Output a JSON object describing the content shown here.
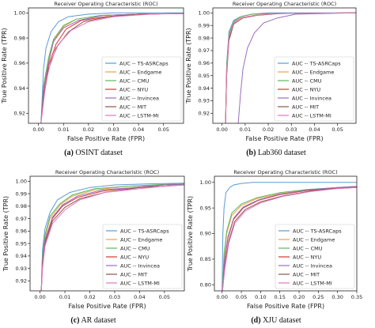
{
  "figure": {
    "panels": [
      {
        "caption_letter": "(a)",
        "caption_text": "OSINT dataset"
      },
      {
        "caption_letter": "(b)",
        "caption_text": "Lab360 dataset"
      },
      {
        "caption_letter": "(c)",
        "caption_text": "AR dataset"
      },
      {
        "caption_letter": "(d)",
        "caption_text": "XJU dataset"
      }
    ]
  },
  "colors": {
    "TS-ASRCaps": "#5a9bd5",
    "Endgame": "#f0a04b",
    "CMU": "#5cb85c",
    "NYU": "#d9342b",
    "Invincea": "#9b6cc0",
    "MIT": "#8c564b",
    "LSTM-MI": "#e377c2"
  },
  "chart_data": [
    {
      "type": "line",
      "title": "Receiver Operating Characteristic (ROC)",
      "xlabel": "False Positive Rate  (FPR)",
      "ylabel": "True Positive Rate  (TPR)",
      "xlim": [
        -0.004,
        0.058
      ],
      "ylim": [
        0.912,
        1.004
      ],
      "xticks": [
        0.0,
        0.01,
        0.02,
        0.03,
        0.04,
        0.05
      ],
      "xtick_labels": [
        "0.00",
        "0.01",
        "0.02",
        "0.03",
        "0.04",
        "0.05"
      ],
      "yticks": [
        0.92,
        0.94,
        0.96,
        0.98,
        1.0
      ],
      "ytick_labels": [
        "0.92",
        "0.94",
        "0.96",
        "0.98",
        "1.00"
      ],
      "legend": "bottom-right",
      "series": [
        {
          "name": "AUC -- TS-ASRCaps",
          "x": [
            0.001,
            0.002,
            0.003,
            0.005,
            0.008,
            0.012,
            0.02,
            0.03,
            0.058
          ],
          "y": [
            0.912,
            0.955,
            0.972,
            0.985,
            0.993,
            0.997,
            0.999,
            1.0,
            1.0
          ]
        },
        {
          "name": "AUC -- Endgame",
          "x": [
            0.001,
            0.002,
            0.004,
            0.006,
            0.01,
            0.015,
            0.025,
            0.04,
            0.058
          ],
          "y": [
            0.912,
            0.94,
            0.962,
            0.978,
            0.989,
            0.995,
            0.998,
            0.999,
            0.9995
          ]
        },
        {
          "name": "AUC -- CMU",
          "x": [
            0.001,
            0.002,
            0.004,
            0.006,
            0.01,
            0.015,
            0.025,
            0.04,
            0.058
          ],
          "y": [
            0.912,
            0.942,
            0.964,
            0.979,
            0.99,
            0.995,
            0.998,
            0.999,
            0.9995
          ]
        },
        {
          "name": "AUC -- NYU",
          "x": [
            0.001,
            0.002,
            0.004,
            0.007,
            0.011,
            0.017,
            0.027,
            0.04,
            0.058
          ],
          "y": [
            0.912,
            0.935,
            0.958,
            0.975,
            0.987,
            0.994,
            0.997,
            0.999,
            0.9995
          ]
        },
        {
          "name": "AUC -- Invincea",
          "x": [
            0.001,
            0.002,
            0.004,
            0.006,
            0.01,
            0.016,
            0.026,
            0.04,
            0.058
          ],
          "y": [
            0.912,
            0.938,
            0.96,
            0.977,
            0.988,
            0.994,
            0.998,
            0.999,
            0.9995
          ]
        },
        {
          "name": "AUC -- MIT",
          "x": [
            0.001,
            0.002,
            0.004,
            0.007,
            0.012,
            0.018,
            0.028,
            0.04,
            0.058
          ],
          "y": [
            0.912,
            0.932,
            0.955,
            0.972,
            0.985,
            0.993,
            0.997,
            0.999,
            0.9995
          ]
        },
        {
          "name": "AUC -- LSTM-MI",
          "x": [
            0.001,
            0.003,
            0.005,
            0.008,
            0.013,
            0.02,
            0.03,
            0.045,
            0.058
          ],
          "y": [
            0.912,
            0.945,
            0.962,
            0.975,
            0.986,
            0.993,
            0.997,
            0.999,
            0.9995
          ]
        }
      ]
    },
    {
      "type": "line",
      "title": "Receiver Operating Characteristic (ROC)",
      "xlabel": "False Positive Rate  (FPR)",
      "ylabel": "True Positive Rate  (TPR)",
      "xlim": [
        -0.004,
        0.058
      ],
      "ylim": [
        0.912,
        1.004
      ],
      "xticks": [
        0.0,
        0.01,
        0.02,
        0.03,
        0.04,
        0.05
      ],
      "xtick_labels": [
        "0.00",
        "0.01",
        "0.02",
        "0.03",
        "0.04",
        "0.05"
      ],
      "yticks": [
        0.92,
        0.93,
        0.94,
        0.95,
        0.96,
        0.97,
        0.98,
        0.99,
        1.0
      ],
      "ytick_labels": [
        "0.92",
        "0.93",
        "0.94",
        "0.95",
        "0.96",
        "0.97",
        "0.98",
        "0.99",
        "1.00"
      ],
      "legend": "bottom-right",
      "series": [
        {
          "name": "AUC -- TS-ASRCaps",
          "x": [
            0.0015,
            0.002,
            0.003,
            0.005,
            0.008,
            0.013,
            0.02,
            0.058
          ],
          "y": [
            0.912,
            0.96,
            0.985,
            0.994,
            0.997,
            0.999,
            1.0,
            1.0
          ]
        },
        {
          "name": "AUC -- Endgame",
          "x": [
            0.0015,
            0.002,
            0.003,
            0.005,
            0.008,
            0.013,
            0.022,
            0.058
          ],
          "y": [
            0.912,
            0.955,
            0.982,
            0.993,
            0.997,
            0.999,
            0.9995,
            1.0
          ]
        },
        {
          "name": "AUC -- CMU",
          "x": [
            0.0015,
            0.002,
            0.003,
            0.005,
            0.008,
            0.013,
            0.022,
            0.058
          ],
          "y": [
            0.912,
            0.957,
            0.983,
            0.993,
            0.997,
            0.999,
            0.9995,
            1.0
          ]
        },
        {
          "name": "AUC -- NYU",
          "x": [
            0.0015,
            0.002,
            0.003,
            0.005,
            0.008,
            0.014,
            0.024,
            0.058
          ],
          "y": [
            0.912,
            0.952,
            0.98,
            0.992,
            0.996,
            0.998,
            0.9995,
            1.0
          ]
        },
        {
          "name": "AUC -- Invincea",
          "x": [
            0.007,
            0.008,
            0.009,
            0.011,
            0.014,
            0.018,
            0.024,
            0.032,
            0.058
          ],
          "y": [
            0.912,
            0.935,
            0.955,
            0.972,
            0.984,
            0.992,
            0.996,
            0.999,
            1.0
          ]
        },
        {
          "name": "AUC -- MIT",
          "x": [
            0.0015,
            0.002,
            0.003,
            0.005,
            0.009,
            0.015,
            0.025,
            0.058
          ],
          "y": [
            0.912,
            0.95,
            0.978,
            0.991,
            0.996,
            0.998,
            0.9995,
            1.0
          ]
        },
        {
          "name": "AUC -- LSTM-MI",
          "x": [
            0.0015,
            0.002,
            0.003,
            0.005,
            0.008,
            0.014,
            0.023,
            0.058
          ],
          "y": [
            0.912,
            0.953,
            0.981,
            0.992,
            0.996,
            0.998,
            0.9995,
            1.0
          ]
        }
      ]
    },
    {
      "type": "line",
      "title": "Receiver Operating Characteristic (ROC)",
      "xlabel": "False Positive Rate  (FPR)",
      "ylabel": "True Positive Rate  (TPR)",
      "xlim": [
        -0.004,
        0.058
      ],
      "ylim": [
        0.912,
        1.004
      ],
      "xticks": [
        0.0,
        0.01,
        0.02,
        0.03,
        0.04,
        0.05
      ],
      "xtick_labels": [
        "0.00",
        "0.01",
        "0.02",
        "0.03",
        "0.04",
        "0.05"
      ],
      "yticks": [
        0.92,
        0.93,
        0.94,
        0.95,
        0.96,
        0.97,
        0.98,
        0.99,
        1.0
      ],
      "ytick_labels": [
        "0.92",
        "0.93",
        "0.94",
        "0.95",
        "0.96",
        "0.97",
        "0.98",
        "0.99",
        "1.00"
      ],
      "legend": "bottom-right",
      "series": [
        {
          "name": "AUC -- TS-ASRCaps",
          "x": [
            0.0005,
            0.001,
            0.002,
            0.004,
            0.007,
            0.012,
            0.02,
            0.03,
            0.045,
            0.058
          ],
          "y": [
            0.912,
            0.945,
            0.962,
            0.975,
            0.985,
            0.991,
            0.995,
            0.997,
            0.998,
            0.9985
          ]
        },
        {
          "name": "AUC -- Endgame",
          "x": [
            0.0005,
            0.001,
            0.002,
            0.004,
            0.008,
            0.013,
            0.022,
            0.035,
            0.05,
            0.058
          ],
          "y": [
            0.912,
            0.938,
            0.955,
            0.97,
            0.981,
            0.988,
            0.993,
            0.996,
            0.997,
            0.9975
          ]
        },
        {
          "name": "AUC -- CMU",
          "x": [
            0.0005,
            0.001,
            0.002,
            0.004,
            0.008,
            0.013,
            0.022,
            0.035,
            0.05,
            0.058
          ],
          "y": [
            0.912,
            0.94,
            0.957,
            0.972,
            0.982,
            0.989,
            0.994,
            0.996,
            0.9975,
            0.998
          ]
        },
        {
          "name": "AUC -- NYU",
          "x": [
            0.0005,
            0.001,
            0.002,
            0.005,
            0.009,
            0.015,
            0.025,
            0.038,
            0.05,
            0.058
          ],
          "y": [
            0.912,
            0.935,
            0.952,
            0.97,
            0.98,
            0.987,
            0.992,
            0.995,
            0.997,
            0.9975
          ]
        },
        {
          "name": "AUC -- Invincea",
          "x": [
            0.0005,
            0.001,
            0.002,
            0.005,
            0.009,
            0.015,
            0.025,
            0.038,
            0.05,
            0.058
          ],
          "y": [
            0.912,
            0.936,
            0.953,
            0.971,
            0.981,
            0.988,
            0.993,
            0.995,
            0.997,
            0.9975
          ]
        },
        {
          "name": "AUC -- MIT",
          "x": [
            0.0005,
            0.001,
            0.002,
            0.005,
            0.01,
            0.016,
            0.026,
            0.04,
            0.05,
            0.058
          ],
          "y": [
            0.912,
            0.932,
            0.95,
            0.968,
            0.979,
            0.986,
            0.991,
            0.995,
            0.996,
            0.997
          ]
        },
        {
          "name": "AUC -- LSTM-MI",
          "x": [
            0.0005,
            0.001,
            0.002,
            0.005,
            0.01,
            0.016,
            0.026,
            0.04,
            0.05,
            0.058
          ],
          "y": [
            0.912,
            0.93,
            0.948,
            0.966,
            0.977,
            0.985,
            0.991,
            0.994,
            0.996,
            0.997
          ]
        }
      ]
    },
    {
      "type": "line",
      "title": "Receiver Operating Characteristic (ROC)",
      "xlabel": "False Positive Rate  (FPR)",
      "ylabel": "True Positive Rate  (TPR)",
      "xlim": [
        -0.02,
        0.35
      ],
      "ylim": [
        0.788,
        1.012
      ],
      "xticks": [
        0.0,
        0.05,
        0.1,
        0.15,
        0.2,
        0.25,
        0.3,
        0.35
      ],
      "xtick_labels": [
        "0.00",
        "0.05",
        "0.10",
        "0.15",
        "0.20",
        "0.25",
        "0.30",
        "0.35"
      ],
      "yticks": [
        0.8,
        0.85,
        0.9,
        0.95,
        1.0
      ],
      "ytick_labels": [
        "0.80",
        "0.85",
        "0.90",
        "0.95",
        "1.00"
      ],
      "legend": "bottom-right",
      "series": [
        {
          "name": "AUC -- TS-ASRCaps",
          "x": [
            0.0,
            0.002,
            0.005,
            0.01,
            0.02,
            0.03,
            0.05,
            0.08,
            0.35
          ],
          "y": [
            0.788,
            0.9,
            0.95,
            0.98,
            0.99,
            0.995,
            0.998,
            1.0,
            1.0
          ]
        },
        {
          "name": "AUC -- Endgame",
          "x": [
            0.001,
            0.005,
            0.012,
            0.025,
            0.05,
            0.09,
            0.15,
            0.22,
            0.3,
            0.35
          ],
          "y": [
            0.788,
            0.85,
            0.9,
            0.935,
            0.955,
            0.968,
            0.978,
            0.985,
            0.99,
            0.992
          ]
        },
        {
          "name": "AUC -- CMU",
          "x": [
            0.001,
            0.005,
            0.012,
            0.025,
            0.05,
            0.09,
            0.15,
            0.22,
            0.3,
            0.35
          ],
          "y": [
            0.788,
            0.86,
            0.905,
            0.94,
            0.958,
            0.97,
            0.98,
            0.986,
            0.99,
            0.992
          ]
        },
        {
          "name": "AUC -- NYU",
          "x": [
            0.001,
            0.006,
            0.015,
            0.03,
            0.055,
            0.095,
            0.15,
            0.22,
            0.3,
            0.35
          ],
          "y": [
            0.788,
            0.84,
            0.89,
            0.928,
            0.95,
            0.965,
            0.976,
            0.984,
            0.989,
            0.991
          ]
        },
        {
          "name": "AUC -- Invincea",
          "x": [
            0.001,
            0.006,
            0.015,
            0.03,
            0.055,
            0.095,
            0.15,
            0.22,
            0.3,
            0.35
          ],
          "y": [
            0.788,
            0.845,
            0.893,
            0.93,
            0.952,
            0.966,
            0.977,
            0.985,
            0.99,
            0.992
          ]
        },
        {
          "name": "AUC -- MIT",
          "x": [
            0.001,
            0.007,
            0.017,
            0.033,
            0.06,
            0.1,
            0.16,
            0.23,
            0.3,
            0.35
          ],
          "y": [
            0.788,
            0.835,
            0.885,
            0.924,
            0.947,
            0.962,
            0.974,
            0.983,
            0.988,
            0.99
          ]
        },
        {
          "name": "AUC -- LSTM-MI",
          "x": [
            0.001,
            0.007,
            0.017,
            0.033,
            0.06,
            0.1,
            0.16,
            0.23,
            0.3,
            0.35
          ],
          "y": [
            0.788,
            0.83,
            0.88,
            0.92,
            0.944,
            0.96,
            0.973,
            0.982,
            0.988,
            0.99
          ]
        }
      ]
    }
  ]
}
